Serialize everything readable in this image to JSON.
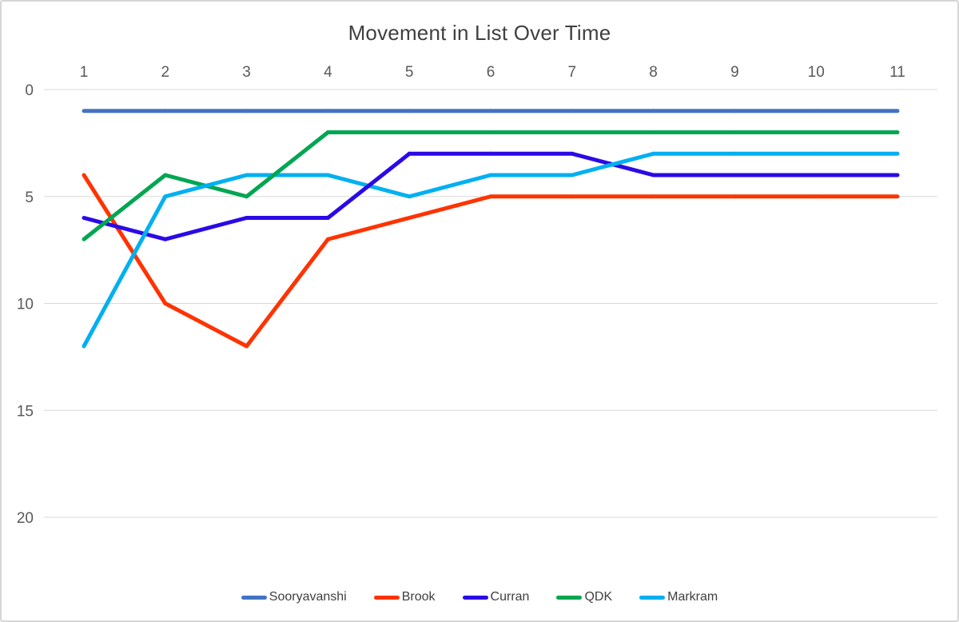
{
  "title": "Movement in List Over Time",
  "chart_data": {
    "type": "line",
    "title": "Movement in List Over Time",
    "x": [
      1,
      2,
      3,
      4,
      5,
      6,
      7,
      8,
      9,
      10,
      11
    ],
    "y_ticks": [
      0,
      5,
      10,
      15,
      20
    ],
    "y_axis_inverted": true,
    "ylim": [
      0,
      20
    ],
    "xlabel": "",
    "ylabel": "",
    "grid": true,
    "legend_position": "bottom",
    "series": [
      {
        "name": "Sooryavanshi",
        "color": "#4472C4",
        "values": [
          1,
          1,
          1,
          1,
          1,
          1,
          1,
          1,
          1,
          1,
          1
        ]
      },
      {
        "name": "Brook",
        "color": "#FF3300",
        "values": [
          4,
          10,
          12,
          7,
          6,
          5,
          5,
          5,
          5,
          5,
          5
        ]
      },
      {
        "name": "Curran",
        "color": "#2A0AE6",
        "values": [
          6,
          7,
          6,
          6,
          3,
          3,
          3,
          4,
          4,
          4,
          4
        ]
      },
      {
        "name": "QDK",
        "color": "#00A651",
        "values": [
          7,
          4,
          5,
          2,
          2,
          2,
          2,
          2,
          2,
          2,
          2
        ]
      },
      {
        "name": "Markram",
        "color": "#00B0F0",
        "values": [
          12,
          5,
          4,
          4,
          5,
          4,
          4,
          3,
          3,
          3,
          3
        ]
      }
    ],
    "colors": {
      "title_text": "#404040",
      "axis_text": "#595959",
      "legend_text": "#404040",
      "gridline": "#D9D9D9",
      "frame_border": "#D6D6D6",
      "background": "#FFFFFF"
    }
  }
}
